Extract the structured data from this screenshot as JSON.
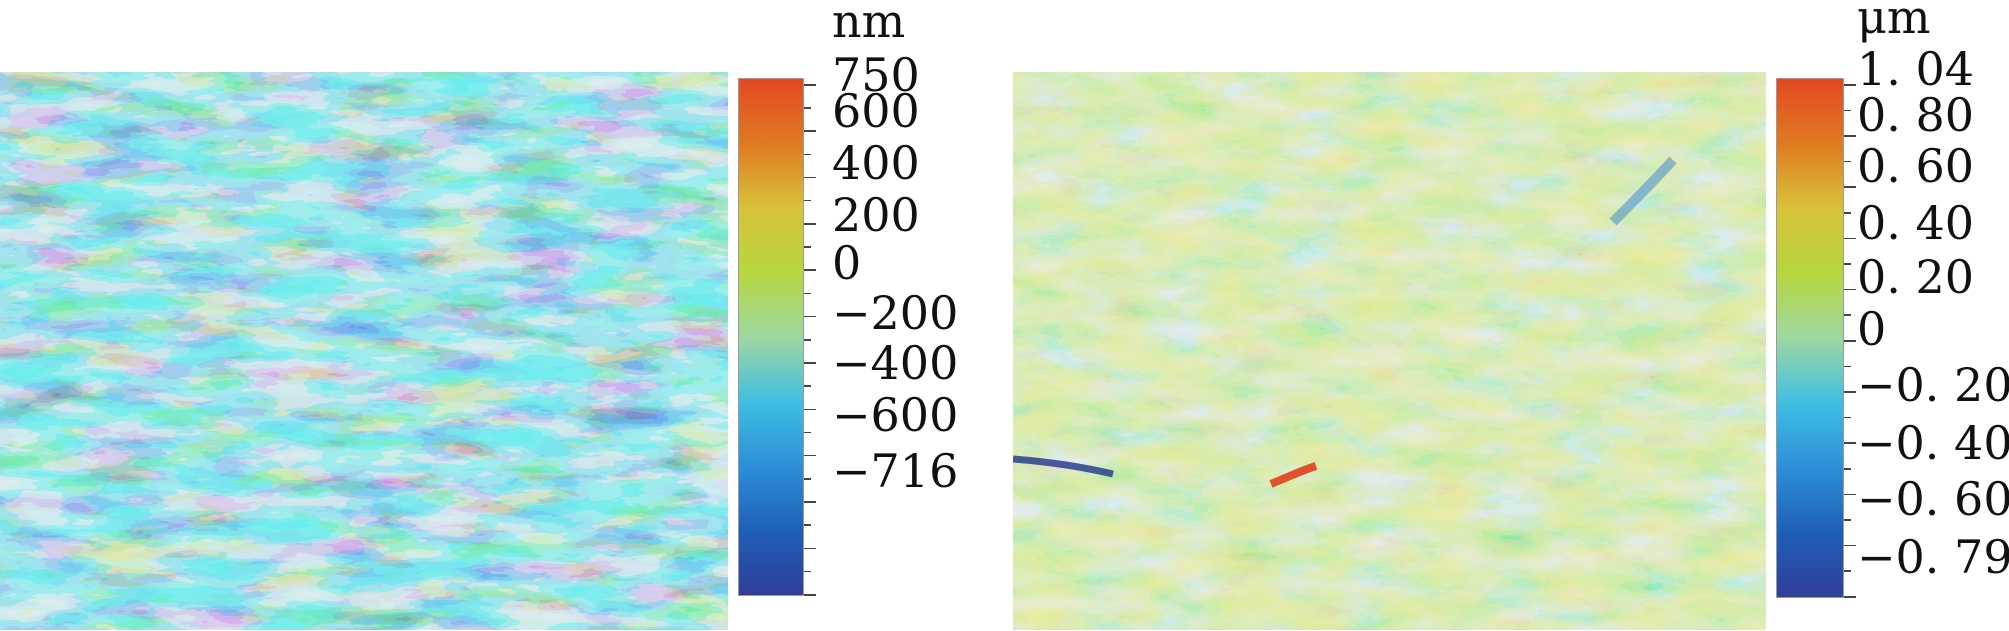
{
  "panels": [
    {
      "id": "left",
      "unit": "nm",
      "labels": [
        "750",
        "600",
        "400",
        "200",
        "0",
        "−200",
        "−400",
        "−600",
        "−716"
      ],
      "colorbar": [
        "#2f3f98",
        "#1f5fb8",
        "#2d8fd8",
        "#3fbfe2",
        "#9fd8a0",
        "#b6d63e",
        "#d9c23a",
        "#e07a22",
        "#e34822"
      ]
    },
    {
      "id": "right",
      "unit": "μm",
      "labels": [
        "1. 04",
        "0. 80",
        "0. 60",
        "0. 40",
        "0. 20",
        "0",
        "−0. 20",
        "−0. 40",
        "−0. 60",
        "−0. 79"
      ],
      "colorbar": [
        "#2f3f98",
        "#1f5fb8",
        "#2d8fd8",
        "#3fbfe2",
        "#9fd8a0",
        "#b6d63e",
        "#d9c23a",
        "#e07a22",
        "#e34822"
      ]
    }
  ]
}
